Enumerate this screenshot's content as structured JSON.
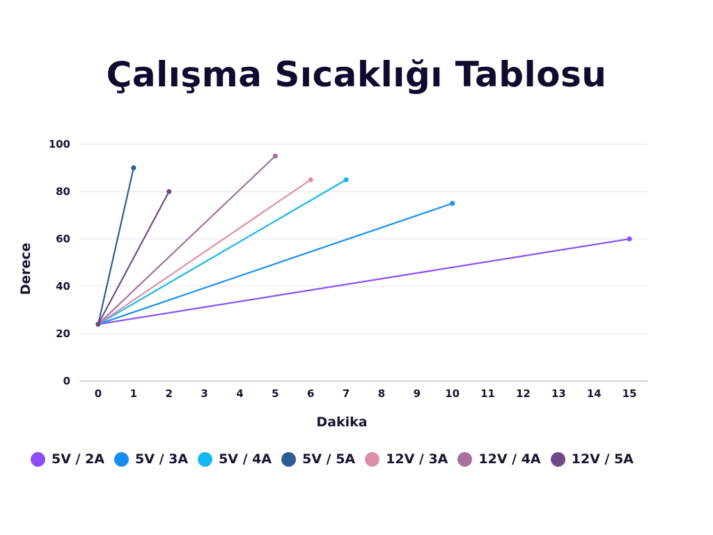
{
  "chart_data": {
    "type": "line",
    "title": "Çalışma Sıcaklığı Tablosu",
    "xlabel": "Dakika",
    "ylabel": "Derece",
    "xlim": [
      0,
      15
    ],
    "ylim": [
      0,
      100
    ],
    "x_ticks": [
      "0",
      "1",
      "2",
      "3",
      "4",
      "5",
      "6",
      "7",
      "8",
      "9",
      "10",
      "11",
      "12",
      "13",
      "14",
      "15"
    ],
    "y_ticks": [
      "0",
      "20",
      "40",
      "60",
      "80",
      "100"
    ],
    "grid": true,
    "legend_position": "bottom",
    "series": [
      {
        "name": "5V / 2A",
        "color": "#8b4ff5",
        "points": [
          [
            0,
            24
          ],
          [
            15,
            60
          ]
        ]
      },
      {
        "name": "5V / 3A",
        "color": "#1a8ef0",
        "points": [
          [
            0,
            24
          ],
          [
            10,
            75
          ]
        ]
      },
      {
        "name": "5V / 4A",
        "color": "#14b6f0",
        "points": [
          [
            0,
            24
          ],
          [
            7,
            85
          ]
        ]
      },
      {
        "name": "5V / 5A",
        "color": "#2e5d95",
        "points": [
          [
            0,
            24
          ],
          [
            1,
            90
          ]
        ]
      },
      {
        "name": "12V / 3A",
        "color": "#dc8faa",
        "points": [
          [
            0,
            24
          ],
          [
            6,
            85
          ]
        ]
      },
      {
        "name": "12V / 4A",
        "color": "#a6719c",
        "points": [
          [
            0,
            24
          ],
          [
            5,
            95
          ]
        ]
      },
      {
        "name": "12V / 5A",
        "color": "#6e4b87",
        "points": [
          [
            0,
            24
          ],
          [
            2,
            80
          ]
        ]
      }
    ]
  }
}
